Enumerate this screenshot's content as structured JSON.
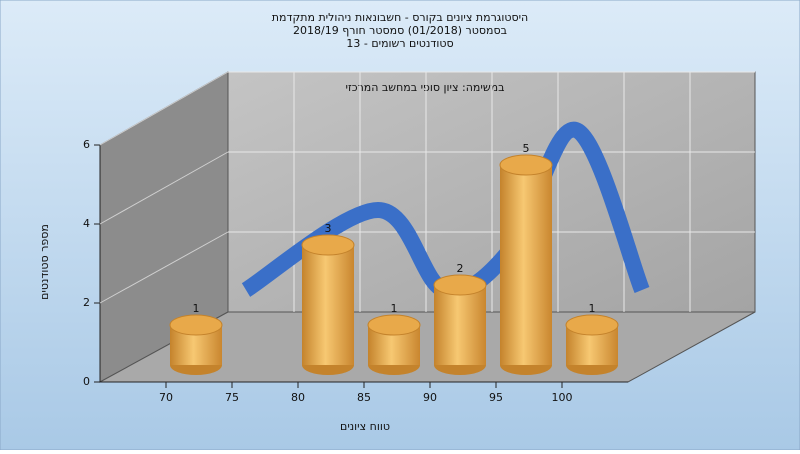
{
  "chart_data": {
    "type": "bar",
    "title_lines": [
      "היסטוגרמת ציונים בקורס - חשבונאות ניהולית מתקדמת",
      "בסמסטר (01/2018) סמסטר חורף 2018/19",
      "סטודנטים רשומים - 13"
    ],
    "annotation": "במשימה: ציון סופי במחשב המרכזי",
    "x_label": "טווח ציונים",
    "y_label": "מספר סטודנטים",
    "x": [
      70,
      80,
      85,
      90,
      95,
      100
    ],
    "values": [
      1,
      3,
      1,
      2,
      5,
      1
    ],
    "xlim": [
      65,
      105
    ],
    "xticks": [
      70,
      75,
      80,
      85,
      90,
      95,
      100
    ],
    "ylim": [
      0,
      6
    ],
    "yticks": [
      0,
      2,
      4,
      6
    ],
    "grid": true,
    "color": "#e8a94a",
    "curve_color": "#3a6fc8"
  }
}
